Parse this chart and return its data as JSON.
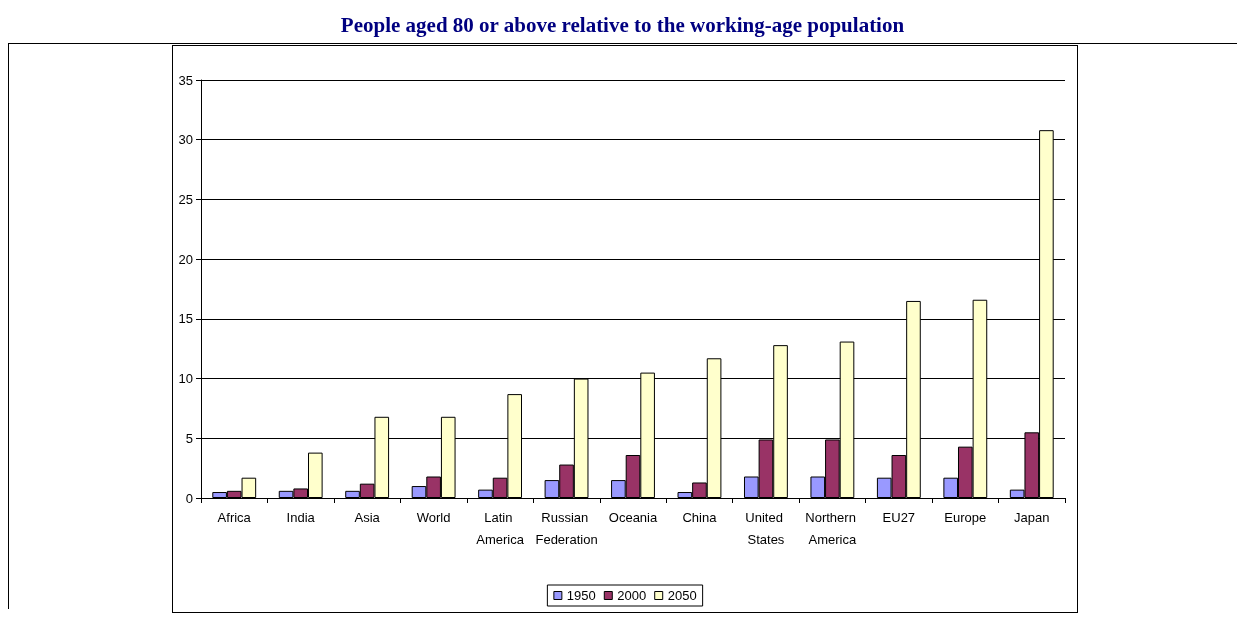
{
  "chart_data": {
    "type": "bar",
    "title": "People aged 80 or above relative to the working-age population",
    "categories": [
      "Africa",
      "India",
      "Asia",
      "World",
      "Latin America",
      "Russian Federation",
      "Oceania",
      "China",
      "United States",
      "Northern America",
      "EU27",
      "Europe",
      "Japan"
    ],
    "series": [
      {
        "name": "1950",
        "color": "#9999ff",
        "values": [
          0.5,
          0.6,
          0.6,
          1.0,
          0.7,
          1.5,
          1.5,
          0.5,
          1.8,
          1.8,
          1.7,
          1.7,
          0.7
        ]
      },
      {
        "name": "2000",
        "color": "#993366",
        "values": [
          0.6,
          0.8,
          1.2,
          1.8,
          1.7,
          2.8,
          3.6,
          1.3,
          4.9,
          4.9,
          3.6,
          4.3,
          5.5
        ]
      },
      {
        "name": "2050",
        "color": "#ffffcc",
        "values": [
          1.7,
          3.8,
          6.8,
          6.8,
          8.7,
          10.0,
          10.5,
          11.7,
          12.8,
          13.1,
          16.5,
          16.6,
          30.8
        ]
      }
    ],
    "ylim": [
      0,
      35
    ],
    "yticks": [
      0,
      5,
      10,
      15,
      20,
      25,
      30,
      35
    ],
    "grid": "y",
    "legend": "bottom"
  }
}
